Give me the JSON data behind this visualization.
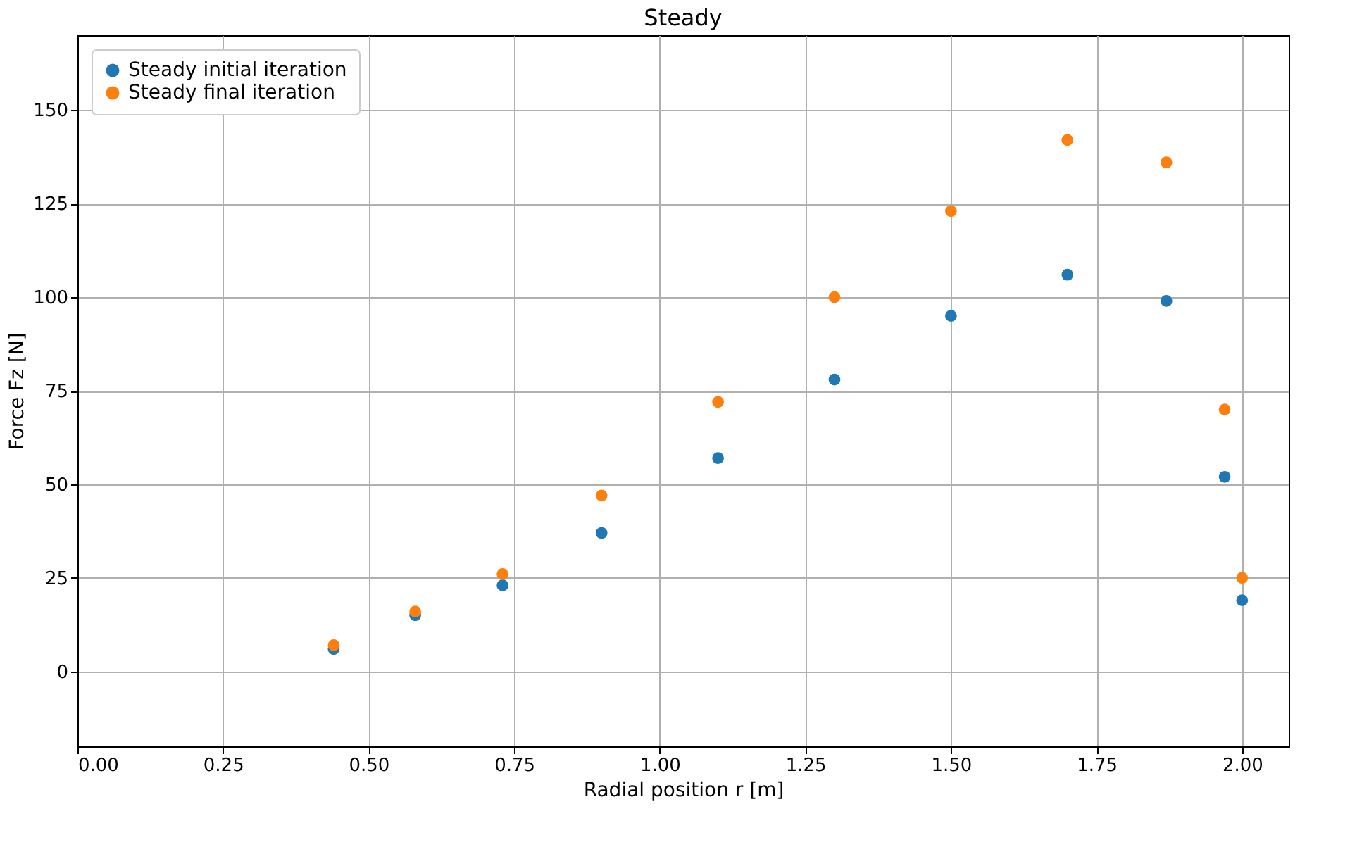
{
  "chart_data": {
    "type": "scatter",
    "title": "Steady",
    "xlabel": "Radial position r [m]",
    "ylabel": "Force Fz [N]",
    "x": [
      0.44,
      0.58,
      0.73,
      0.9,
      1.1,
      1.3,
      1.5,
      1.7,
      1.87,
      1.97,
      2.0
    ],
    "series": [
      {
        "name": "Steady initial iteration",
        "color": "#1f77b4",
        "values": [
          6,
          15,
          23,
          37,
          57,
          78,
          95,
          106,
          99,
          52,
          19
        ]
      },
      {
        "name": "Steady final iteration",
        "color": "#ff7f0e",
        "values": [
          7,
          16,
          26,
          47,
          72,
          100,
          123,
          142,
          136,
          70,
          25
        ]
      }
    ],
    "xlim": [
      0,
      2.08
    ],
    "ylim": [
      -20,
      170
    ],
    "xticks": [
      {
        "value": 0,
        "label": "0.00"
      },
      {
        "value": 0.25,
        "label": "0.25"
      },
      {
        "value": 0.5,
        "label": "0.50"
      },
      {
        "value": 0.75,
        "label": "0.75"
      },
      {
        "value": 1.0,
        "label": "1.00"
      },
      {
        "value": 1.25,
        "label": "1.25"
      },
      {
        "value": 1.5,
        "label": "1.50"
      },
      {
        "value": 1.75,
        "label": "1.75"
      },
      {
        "value": 2.0,
        "label": "2.00"
      }
    ],
    "yticks": [
      0,
      25,
      50,
      75,
      100,
      125,
      150
    ],
    "grid": true,
    "legend": "top left",
    "marker": "circle"
  }
}
